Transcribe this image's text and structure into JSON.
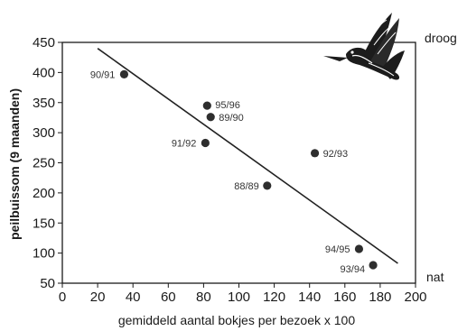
{
  "chart_data": {
    "type": "scatter",
    "title": "",
    "xlabel": "gemiddeld aantal bokjes per bezoek x 100",
    "ylabel": "peilbuissom (9 maanden)",
    "xlim": [
      0,
      200
    ],
    "ylim": [
      50,
      450
    ],
    "x_ticks": [
      0,
      20,
      40,
      60,
      80,
      100,
      120,
      140,
      160,
      180,
      200
    ],
    "y_ticks": [
      50,
      100,
      150,
      200,
      250,
      300,
      350,
      400,
      450
    ],
    "grid": false,
    "legend": "none",
    "points": [
      {
        "label": "90/91",
        "x": 35,
        "y": 397
      },
      {
        "label": "95/96",
        "x": 82,
        "y": 345
      },
      {
        "label": "89/90",
        "x": 84,
        "y": 326
      },
      {
        "label": "91/92",
        "x": 81,
        "y": 283
      },
      {
        "label": "92/93",
        "x": 143,
        "y": 266
      },
      {
        "label": "88/89",
        "x": 116,
        "y": 212
      },
      {
        "label": "94/95",
        "x": 168,
        "y": 107
      },
      {
        "label": "93/94",
        "x": 176,
        "y": 80
      }
    ],
    "trendline": {
      "x": [
        20,
        190
      ],
      "y": [
        440,
        83
      ]
    },
    "side_labels": {
      "top": "droog",
      "bottom": "nat"
    }
  },
  "colors": {
    "marker": "#2e2e2e",
    "line": "#222222",
    "axis": "#1a1a1a"
  },
  "decoration": {
    "icon": "snipe-bird-icon"
  }
}
